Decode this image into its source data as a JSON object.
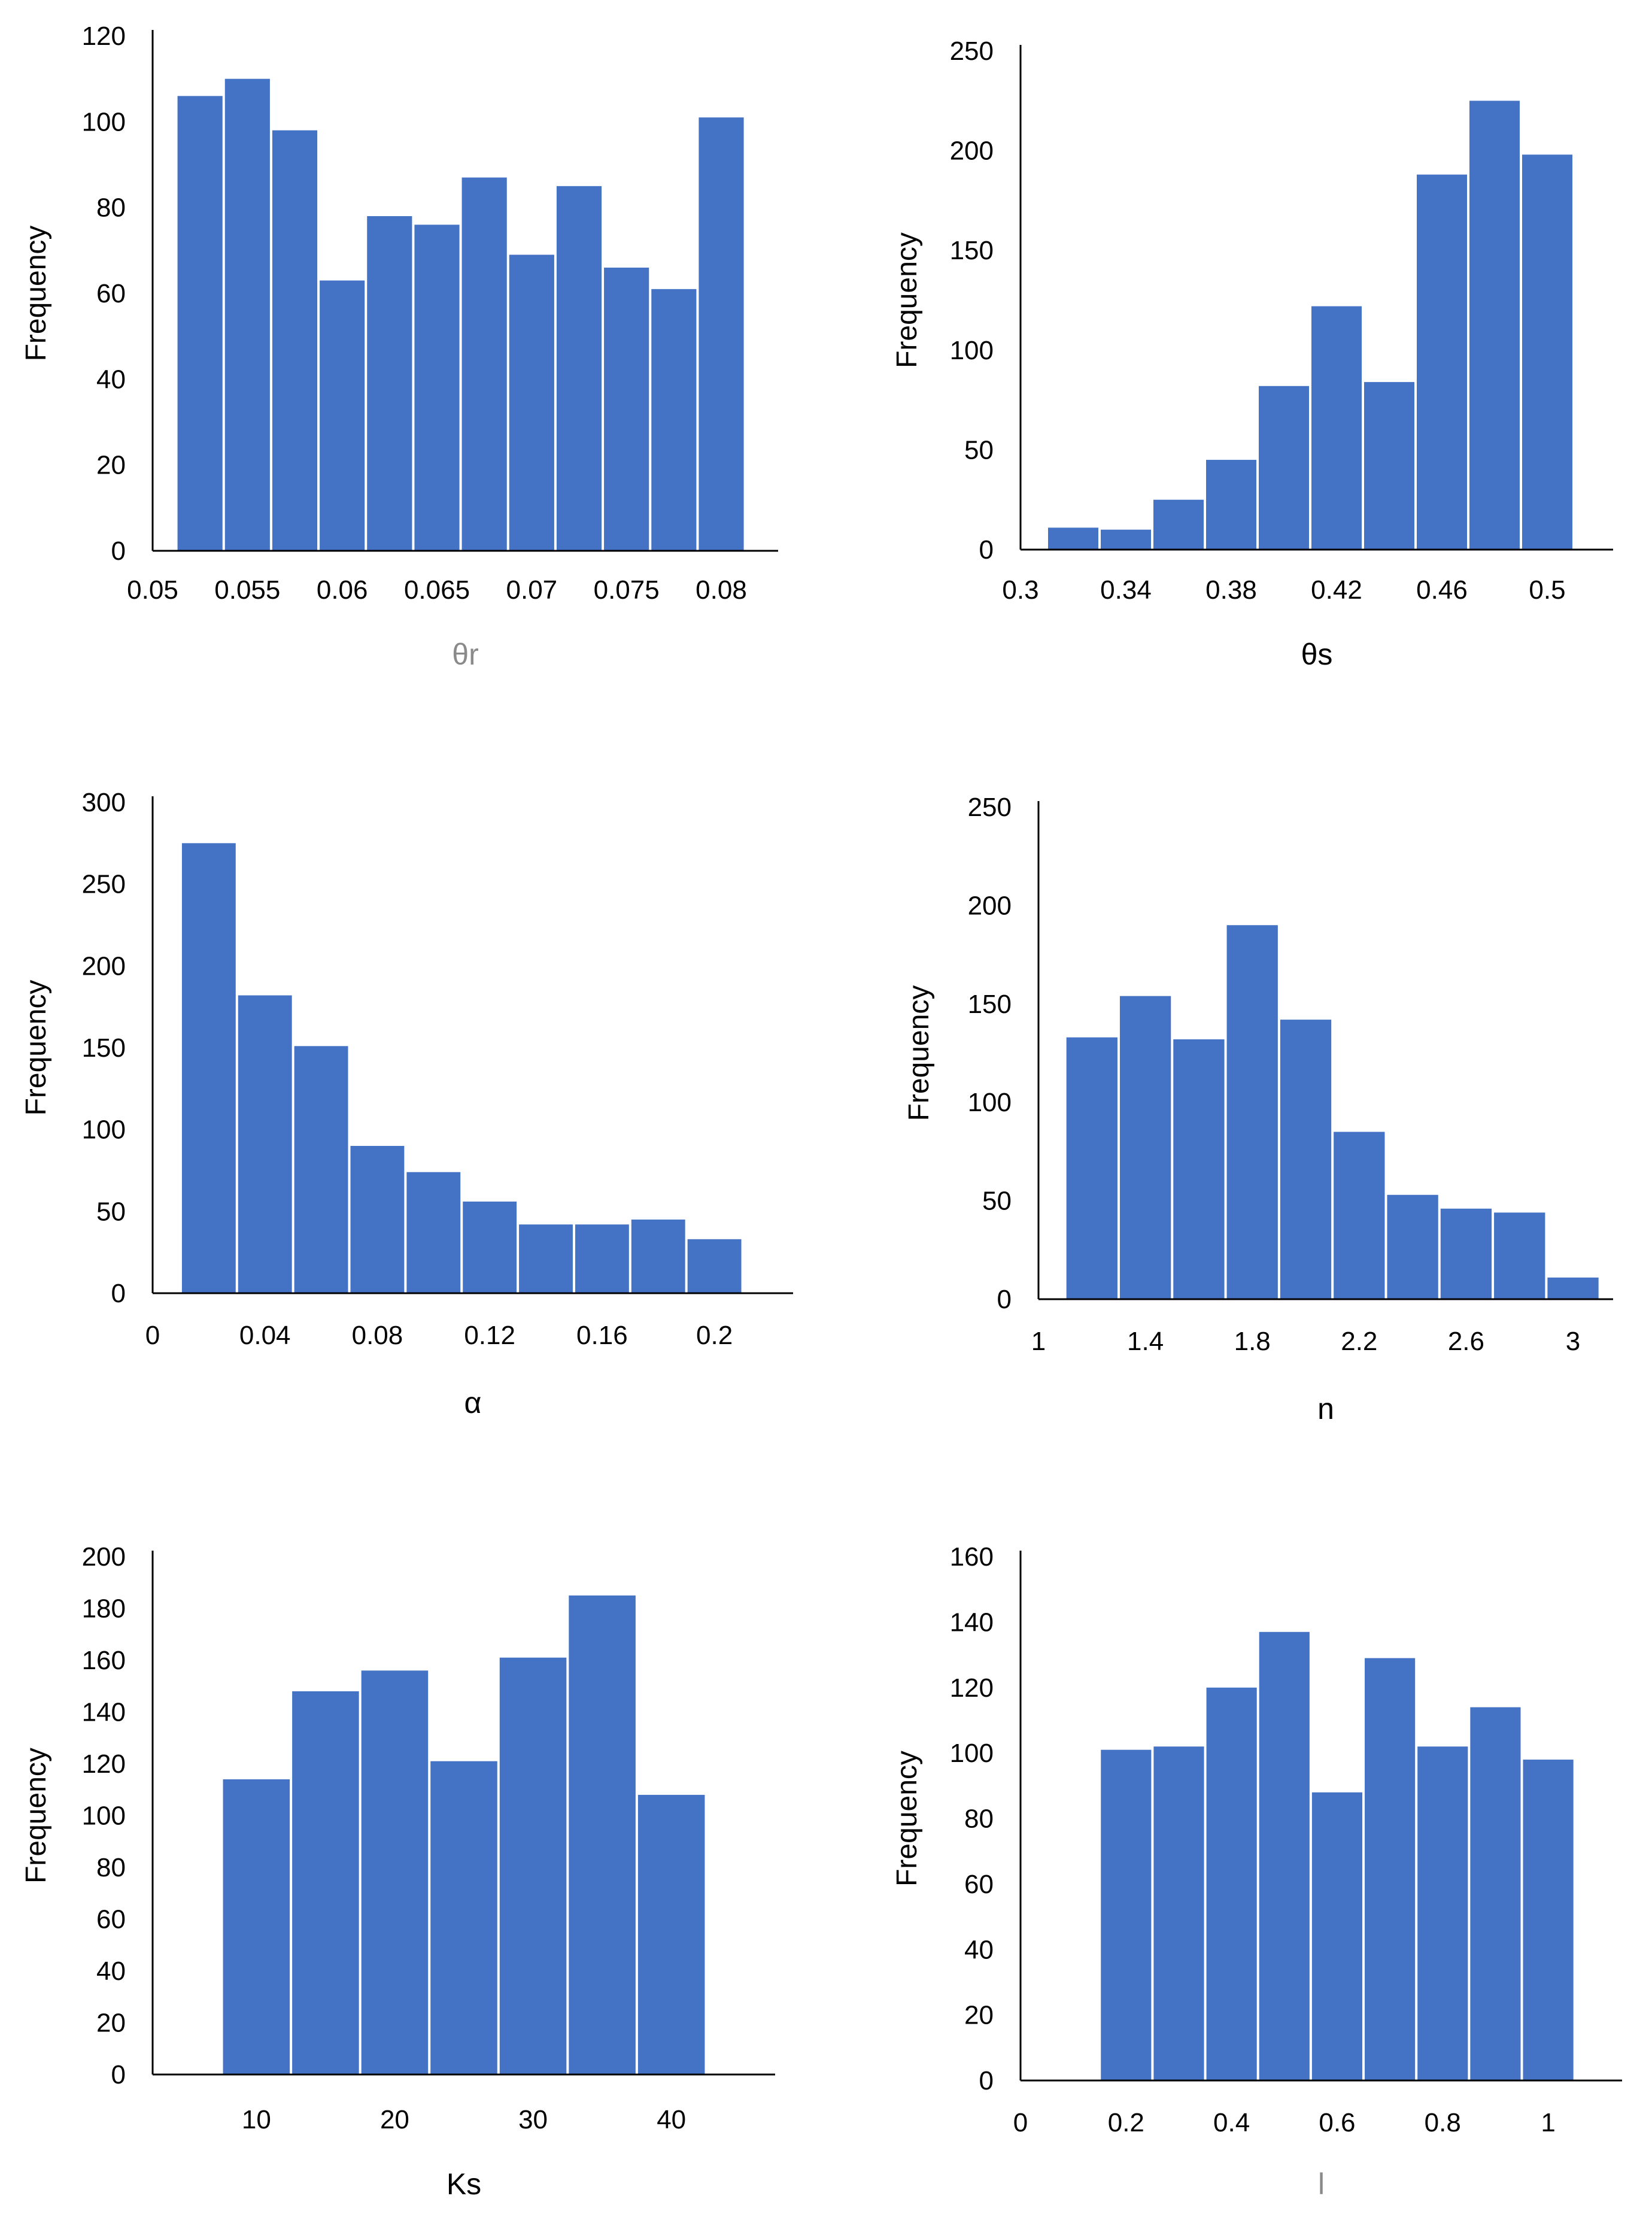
{
  "colors": {
    "bar": "#4472C4",
    "axis": "#000000",
    "muted_label": "#8a8a8a"
  },
  "chart_data": [
    {
      "type": "bar",
      "title": "",
      "xlabel": "θr",
      "xlabel_muted": true,
      "ylabel": "Frequency",
      "ylim": [
        0,
        120
      ],
      "yticks": [
        0,
        20,
        40,
        60,
        80,
        100,
        120
      ],
      "xlim": [
        0.05,
        0.083
      ],
      "xticks": [
        "0.05",
        "0.055",
        "0.06",
        "0.065",
        "0.07",
        "0.075",
        "0.08"
      ],
      "bin_width": 0.0025,
      "x": [
        0.0525,
        0.055,
        0.0575,
        0.06,
        0.0625,
        0.065,
        0.0675,
        0.07,
        0.0725,
        0.075,
        0.0775,
        0.08
      ],
      "values": [
        106,
        110,
        98,
        63,
        78,
        76,
        87,
        69,
        85,
        66,
        61,
        101
      ]
    },
    {
      "type": "bar",
      "title": "",
      "xlabel": "θs",
      "xlabel_muted": false,
      "ylabel": "Frequency",
      "ylim": [
        0,
        250
      ],
      "yticks": [
        0,
        50,
        100,
        150,
        200,
        250
      ],
      "xlim": [
        0.3,
        0.525
      ],
      "xticks": [
        "0.3",
        "0.34",
        "0.38",
        "0.42",
        "0.46",
        "0.5"
      ],
      "bin_width": 0.02,
      "x": [
        0.32,
        0.34,
        0.36,
        0.38,
        0.4,
        0.42,
        0.44,
        0.46,
        0.48,
        0.5
      ],
      "values": [
        11,
        10,
        25,
        45,
        82,
        122,
        84,
        188,
        225,
        198
      ]
    },
    {
      "type": "bar",
      "title": "",
      "xlabel": "α",
      "xlabel_muted": false,
      "ylabel": "Frequency",
      "ylim": [
        0,
        300
      ],
      "yticks": [
        0,
        50,
        100,
        150,
        200,
        250,
        300
      ],
      "xlim": [
        0,
        0.228
      ],
      "xticks": [
        "0",
        "0.04",
        "0.08",
        "0.12",
        "0.16",
        "0.2"
      ],
      "bin_width": 0.02,
      "x": [
        0.02,
        0.04,
        0.06,
        0.08,
        0.1,
        0.12,
        0.14,
        0.16,
        0.18,
        0.2
      ],
      "values": [
        275,
        182,
        151,
        90,
        74,
        56,
        42,
        42,
        45,
        33
      ]
    },
    {
      "type": "bar",
      "title": "",
      "xlabel": "n",
      "xlabel_muted": false,
      "ylabel": "Frequency",
      "ylim": [
        0,
        250
      ],
      "yticks": [
        0,
        50,
        100,
        150,
        200,
        250
      ],
      "xlim": [
        1,
        3.15
      ],
      "xticks": [
        "1",
        "1.4",
        "1.8",
        "2.2",
        "2.6",
        "3"
      ],
      "bin_width": 0.2,
      "x": [
        1.2,
        1.4,
        1.6,
        1.8,
        2.0,
        2.2,
        2.4,
        2.6,
        2.8,
        3.0
      ],
      "values": [
        133,
        154,
        132,
        190,
        142,
        85,
        53,
        46,
        44,
        11
      ]
    },
    {
      "type": "bar",
      "title": "",
      "xlabel": "Ks",
      "xlabel_muted": false,
      "ylabel": "Frequency",
      "ylim": [
        0,
        200
      ],
      "yticks": [
        0,
        20,
        40,
        60,
        80,
        100,
        120,
        140,
        160,
        180,
        200
      ],
      "xlim": [
        2.5,
        47.5
      ],
      "xticks": [
        "10",
        "20",
        "30",
        "40"
      ],
      "xtick_values": [
        10,
        20,
        30,
        40
      ],
      "bin_width": 5,
      "x": [
        10,
        15,
        20,
        25,
        30,
        35,
        40
      ],
      "values": [
        114,
        148,
        156,
        121,
        161,
        185,
        108
      ]
    },
    {
      "type": "bar",
      "title": "",
      "xlabel": "l",
      "xlabel_muted": true,
      "ylabel": "Frequency",
      "ylim": [
        0,
        160
      ],
      "yticks": [
        0,
        20,
        40,
        60,
        80,
        100,
        120,
        140,
        160
      ],
      "xlim": [
        0,
        1.14
      ],
      "xticks": [
        "0",
        "0.2",
        "0.4",
        "0.6",
        "0.8",
        "1"
      ],
      "bin_width": 0.1,
      "x": [
        0.2,
        0.3,
        0.4,
        0.5,
        0.6,
        0.7,
        0.8,
        0.9,
        1.0
      ],
      "values": [
        101,
        102,
        120,
        137,
        88,
        129,
        102,
        114,
        98
      ]
    }
  ]
}
